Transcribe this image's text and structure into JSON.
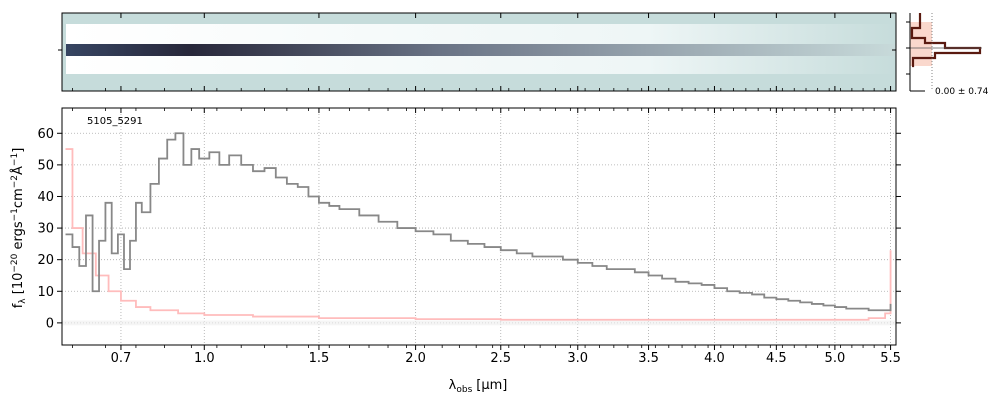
{
  "chart_data": {
    "type": "line",
    "object_id": "5105_5291",
    "xlabel_main": "λ",
    "xlabel_sub": "obs",
    "xlabel_unit": "[μm]",
    "ylabel": "f_λ [10^-20 ergs^-1 cm^-2 Å^-1]",
    "ylabel_text": {
      "f": "f",
      "lam": "λ",
      "open": " [10",
      "exp20": "−20",
      "ergs": " ergs",
      "exp_s": "−1",
      "cm": "cm",
      "exp_cm": "−2",
      "A": "Å",
      "exp_A": "−1",
      "close": "]"
    },
    "xlim": [
      0.52,
      5.55
    ],
    "ylim": [
      -7,
      68
    ],
    "x_tick_labels": [
      "0.7",
      "1.0",
      "1.5",
      "2.0",
      "2.5",
      "3.0",
      "3.5",
      "4.0",
      "4.5",
      "5.0",
      "5.5"
    ],
    "x_tick_values": [
      0.7,
      1.0,
      1.5,
      2.0,
      2.5,
      3.0,
      3.5,
      4.0,
      4.5,
      5.0,
      5.5
    ],
    "y_tick_values": [
      0,
      10,
      20,
      30,
      40,
      50,
      60
    ],
    "y_tick_labels": [
      "0",
      "10",
      "20",
      "30",
      "40",
      "50",
      "60"
    ],
    "grid": true,
    "series": [
      {
        "color": "#888888",
        "x": [
          0.53,
          0.55,
          0.57,
          0.59,
          0.61,
          0.63,
          0.65,
          0.67,
          0.69,
          0.71,
          0.73,
          0.75,
          0.77,
          0.8,
          0.83,
          0.86,
          0.89,
          0.92,
          0.95,
          0.98,
          1.02,
          1.06,
          1.1,
          1.15,
          1.2,
          1.25,
          1.3,
          1.35,
          1.4,
          1.45,
          1.5,
          1.55,
          1.6,
          1.7,
          1.8,
          1.9,
          2.0,
          2.1,
          2.2,
          2.3,
          2.4,
          2.5,
          2.6,
          2.7,
          2.8,
          2.9,
          3.0,
          3.1,
          3.2,
          3.3,
          3.4,
          3.5,
          3.6,
          3.7,
          3.8,
          3.9,
          4.0,
          4.1,
          4.2,
          4.3,
          4.4,
          4.5,
          4.6,
          4.7,
          4.8,
          4.9,
          5.0,
          5.1,
          5.2,
          5.3,
          5.4,
          5.48,
          5.5
        ],
        "y": [
          28,
          24,
          18,
          34,
          10,
          26,
          38,
          22,
          28,
          17,
          26,
          38,
          35,
          44,
          52,
          58,
          60,
          50,
          55,
          52,
          54,
          50,
          53,
          50,
          48,
          49,
          46,
          44,
          43,
          40,
          38,
          37,
          36,
          34,
          32,
          30,
          29,
          28,
          26,
          25,
          24,
          23,
          22,
          21,
          21,
          20,
          19,
          18,
          17,
          17,
          16,
          15,
          14,
          13,
          12.5,
          12,
          11,
          10,
          9.5,
          9,
          8,
          7.5,
          7,
          6.5,
          6,
          5.5,
          5,
          4.5,
          4.5,
          4,
          4,
          4,
          6
        ]
      },
      {
        "color": "#ffbcbc",
        "x": [
          0.53,
          0.55,
          0.58,
          0.62,
          0.66,
          0.7,
          0.75,
          0.8,
          0.9,
          1.0,
          1.2,
          1.5,
          2.0,
          2.5,
          3.0,
          3.5,
          4.0,
          4.5,
          5.0,
          5.3,
          5.45,
          5.5
        ],
        "y": [
          55,
          30,
          22,
          15,
          10,
          7,
          5,
          4,
          3,
          2.5,
          2,
          1.5,
          1.2,
          1,
          1,
          1,
          1,
          1,
          1,
          1.5,
          3,
          23
        ]
      }
    ],
    "inset_label": "0.00 ± 0.74"
  }
}
